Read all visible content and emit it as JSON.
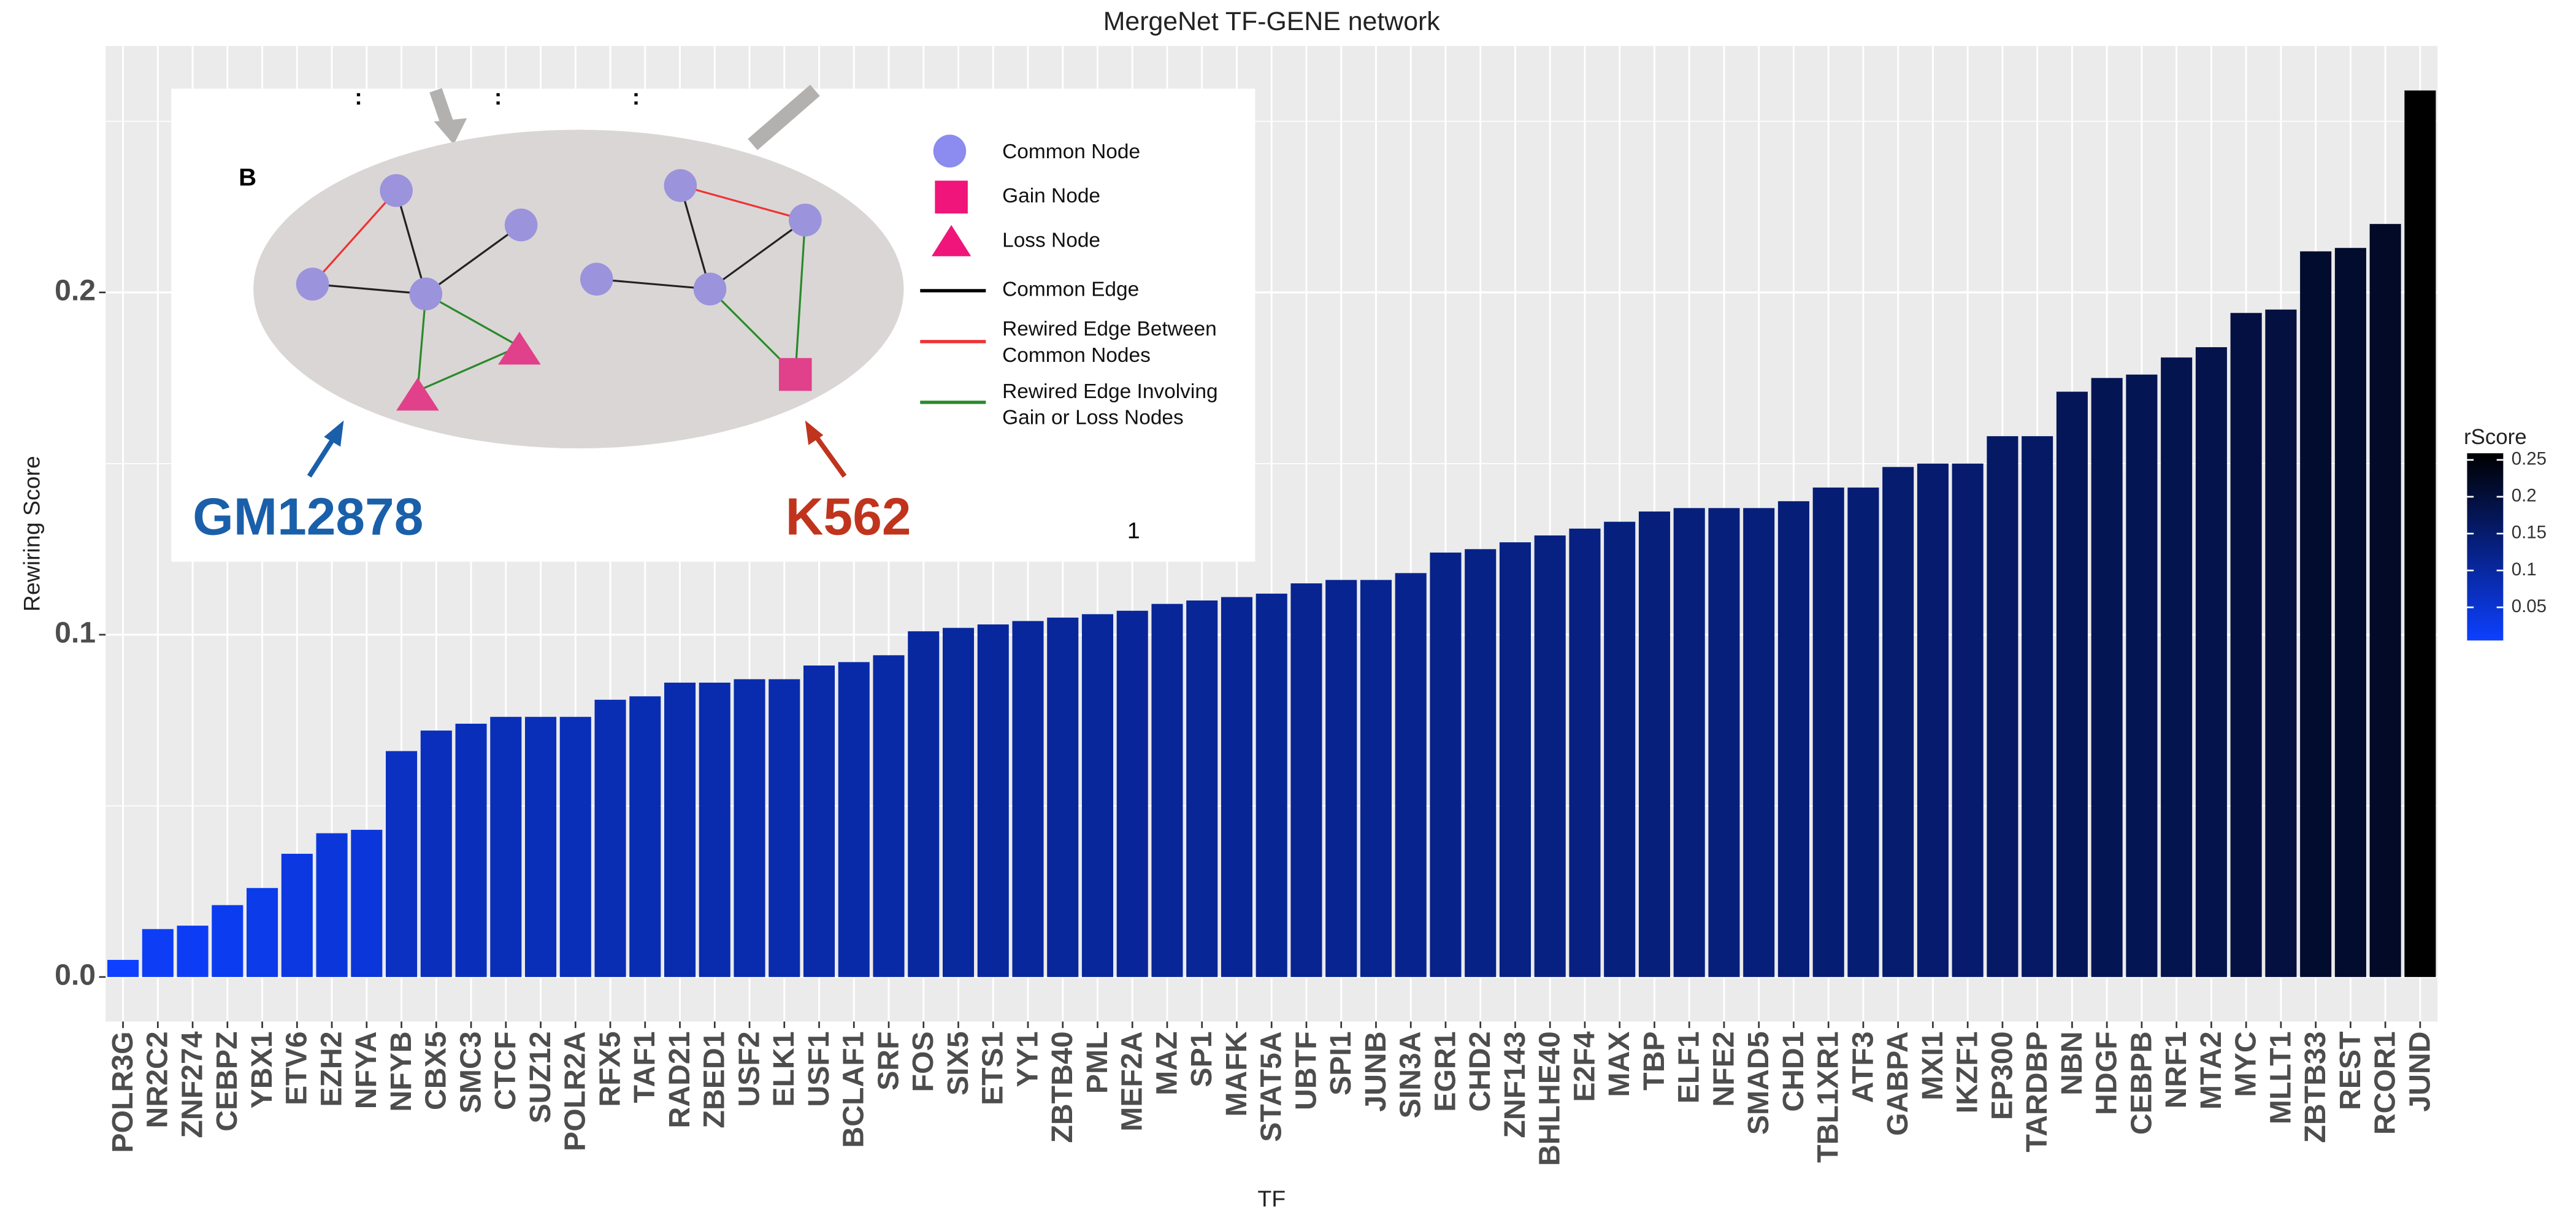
{
  "chart_data": {
    "type": "bar",
    "title": "MergeNet TF-GENE network",
    "x_label": "TF",
    "y_label": "Rewiring Score",
    "categories": [
      "POLR3G",
      "NR2C2",
      "ZNF274",
      "CEBPZ",
      "YBX1",
      "ETV6",
      "EZH2",
      "NFYA",
      "NFYB",
      "CBX5",
      "SMC3",
      "CTCF",
      "SUZ12",
      "POLR2A",
      "RFX5",
      "TAF1",
      "RAD21",
      "ZBED1",
      "USF2",
      "ELK1",
      "USF1",
      "BCLAF1",
      "SRF",
      "FOS",
      "SIX5",
      "ETS1",
      "YY1",
      "ZBTB40",
      "PML",
      "MEF2A",
      "MAZ",
      "SP1",
      "MAFK",
      "STAT5A",
      "UBTF",
      "SPI1",
      "JUNB",
      "SIN3A",
      "EGR1",
      "CHD2",
      "ZNF143",
      "BHLHE40",
      "E2F4",
      "MAX",
      "TBP",
      "ELF1",
      "NFE2",
      "SMAD5",
      "CHD1",
      "TBL1XR1",
      "ATF3",
      "GABPA",
      "MXI1",
      "IKZF1",
      "EP300",
      "TARDBP",
      "NBN",
      "HDGF",
      "CEBPB",
      "NRF1",
      "MTA2",
      "MYC",
      "MLLT1",
      "ZBTB33",
      "REST",
      "RCOR1",
      "JUND"
    ],
    "values": [
      0.005,
      0.014,
      0.015,
      0.021,
      0.026,
      0.036,
      0.042,
      0.043,
      0.066,
      0.072,
      0.074,
      0.076,
      0.076,
      0.076,
      0.081,
      0.082,
      0.086,
      0.086,
      0.087,
      0.087,
      0.091,
      0.092,
      0.094,
      0.101,
      0.102,
      0.103,
      0.104,
      0.105,
      0.106,
      0.107,
      0.109,
      0.11,
      0.111,
      0.112,
      0.115,
      0.116,
      0.116,
      0.118,
      0.124,
      0.125,
      0.127,
      0.129,
      0.131,
      0.133,
      0.136,
      0.137,
      0.137,
      0.137,
      0.139,
      0.143,
      0.143,
      0.149,
      0.15,
      0.15,
      0.158,
      0.158,
      0.171,
      0.175,
      0.176,
      0.181,
      0.184,
      0.194,
      0.195,
      0.212,
      0.213,
      0.22,
      0.259
    ],
    "ylim": [
      -0.013,
      0.272
    ],
    "yticks": [
      {
        "value": 0,
        "label": "0.0"
      },
      0.1,
      0.2
    ],
    "y_minor_grid": [
      0.05,
      0.15,
      0.25
    ],
    "grid": true,
    "color_scale": {
      "title": "rScore",
      "low": "#0d40ff",
      "high": "#000000",
      "ticks": [
        0.05,
        0.1,
        0.15,
        0.2,
        0.25
      ]
    }
  },
  "inset": {
    "panel": "B",
    "dots": [
      ":",
      ":",
      ":"
    ],
    "legend": [
      {
        "label": [
          "Common Node"
        ]
      },
      {
        "label": [
          "Gain Node"
        ]
      },
      {
        "label": [
          "Loss Node"
        ]
      },
      {
        "label": [
          "Common Edge"
        ]
      },
      {
        "label": [
          "Rewired Edge Between",
          "Common Nodes"
        ]
      },
      {
        "label": [
          "Rewired Edge Involving",
          "Gain or Loss Nodes"
        ]
      }
    ],
    "left_label": "GM12878",
    "right_label": "K562",
    "page_number": "1"
  }
}
